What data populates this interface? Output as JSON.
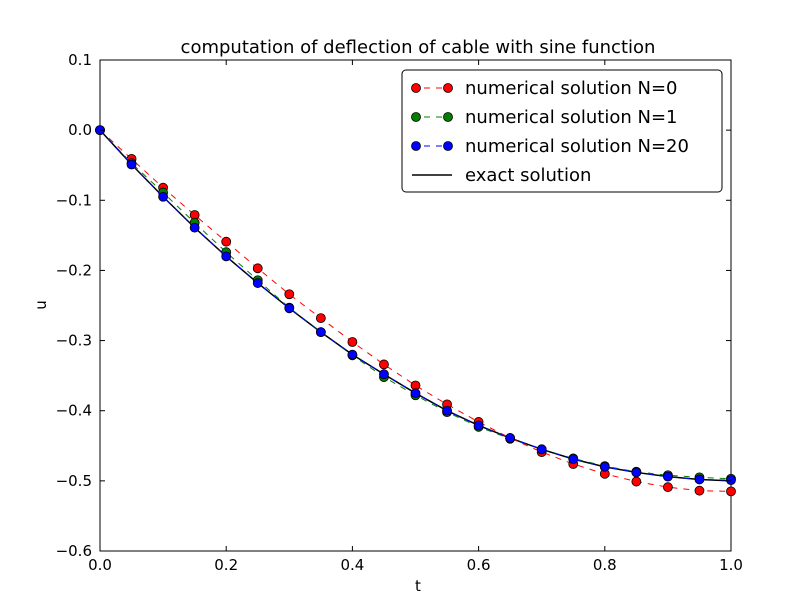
{
  "chart_data": {
    "type": "line",
    "title": "computation of deflection of cable with sine function",
    "xlabel": "t",
    "ylabel": "u",
    "xlim": [
      0.0,
      1.0
    ],
    "ylim": [
      -0.6,
      0.1
    ],
    "xticks": [
      0.0,
      0.2,
      0.4,
      0.6,
      0.8,
      1.0
    ],
    "xtick_labels": [
      "0.0",
      "0.2",
      "0.4",
      "0.6",
      "0.8",
      "1.0"
    ],
    "yticks": [
      0.1,
      0.0,
      -0.1,
      -0.2,
      -0.3,
      -0.4,
      -0.5,
      -0.6
    ],
    "ytick_labels": [
      "0.1",
      "0.0",
      "−0.1",
      "−0.2",
      "−0.3",
      "−0.4",
      "−0.5",
      "−0.6"
    ],
    "grid": false,
    "legend_position": "top-right",
    "x": [
      0.0,
      0.05,
      0.1,
      0.15,
      0.2,
      0.25,
      0.3,
      0.35,
      0.4,
      0.45,
      0.5,
      0.55,
      0.6,
      0.65,
      0.7,
      0.75,
      0.8,
      0.85,
      0.9,
      0.95,
      1.0
    ],
    "series": [
      {
        "name": "numerical solution N=0",
        "color": "#ff0000",
        "style": "dashed-markers",
        "values": [
          0.0,
          -0.041,
          -0.082,
          -0.121,
          -0.159,
          -0.197,
          -0.234,
          -0.268,
          -0.302,
          -0.334,
          -0.364,
          -0.391,
          -0.416,
          -0.439,
          -0.459,
          -0.476,
          -0.49,
          -0.501,
          -0.509,
          -0.514,
          -0.515
        ]
      },
      {
        "name": "numerical solution N=1",
        "color": "#008000",
        "style": "dashed-markers",
        "values": [
          0.0,
          -0.047,
          -0.089,
          -0.132,
          -0.174,
          -0.214,
          -0.253,
          -0.288,
          -0.321,
          -0.352,
          -0.378,
          -0.402,
          -0.423,
          -0.44,
          -0.455,
          -0.468,
          -0.479,
          -0.487,
          -0.492,
          -0.495,
          -0.497
        ]
      },
      {
        "name": "numerical solution N=20",
        "color": "#0000ff",
        "style": "dashed-markers",
        "values": [
          0.0,
          -0.049,
          -0.095,
          -0.139,
          -0.18,
          -0.218,
          -0.254,
          -0.288,
          -0.32,
          -0.348,
          -0.375,
          -0.4,
          -0.421,
          -0.439,
          -0.455,
          -0.469,
          -0.48,
          -0.488,
          -0.494,
          -0.498,
          -0.499
        ]
      },
      {
        "name": "exact solution",
        "color": "#000000",
        "style": "solid",
        "values": [
          0.0,
          -0.049,
          -0.095,
          -0.139,
          -0.18,
          -0.218,
          -0.254,
          -0.288,
          -0.32,
          -0.348,
          -0.375,
          -0.4,
          -0.421,
          -0.439,
          -0.455,
          -0.469,
          -0.48,
          -0.488,
          -0.494,
          -0.498,
          -0.5
        ]
      }
    ]
  }
}
